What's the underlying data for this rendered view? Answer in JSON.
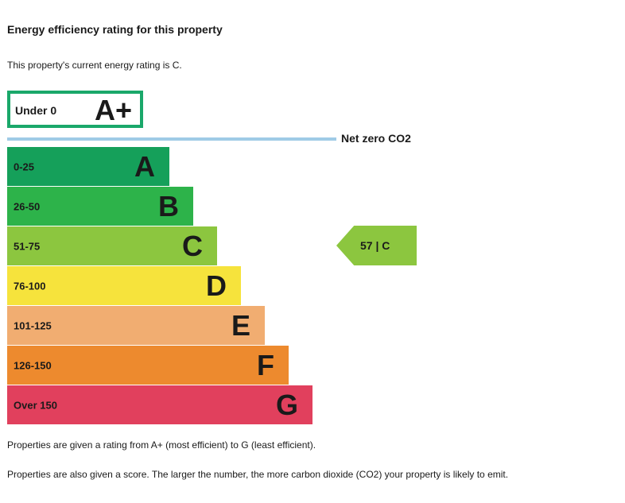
{
  "title": "Energy efficiency rating for this property",
  "subtitle": "This property's current energy rating is C.",
  "chart_data": {
    "type": "bar",
    "top_band": {
      "range": "Under 0",
      "letter": "A+",
      "color": "#1aa86a"
    },
    "net_zero_label": "Net zero CO2",
    "bands": [
      {
        "range": "0-25",
        "letter": "A",
        "color": "#15a05a"
      },
      {
        "range": "26-50",
        "letter": "B",
        "color": "#2db34a"
      },
      {
        "range": "51-75",
        "letter": "C",
        "color": "#8cc63f"
      },
      {
        "range": "76-100",
        "letter": "D",
        "color": "#f6e33c"
      },
      {
        "range": "101-125",
        "letter": "E",
        "color": "#f1ad71"
      },
      {
        "range": "126-150",
        "letter": "F",
        "color": "#ed8a2e"
      },
      {
        "range": "Over 150",
        "letter": "G",
        "color": "#e1405d"
      }
    ],
    "current": {
      "score": 57,
      "letter": "C",
      "label": "57 | C",
      "color": "#8cc63f"
    }
  },
  "notes": [
    "Properties are given a rating from A+ (most efficient) to G (least efficient).",
    "Properties are also given a score. The larger the number, the more carbon dioxide (CO2) your property is likely to emit."
  ]
}
